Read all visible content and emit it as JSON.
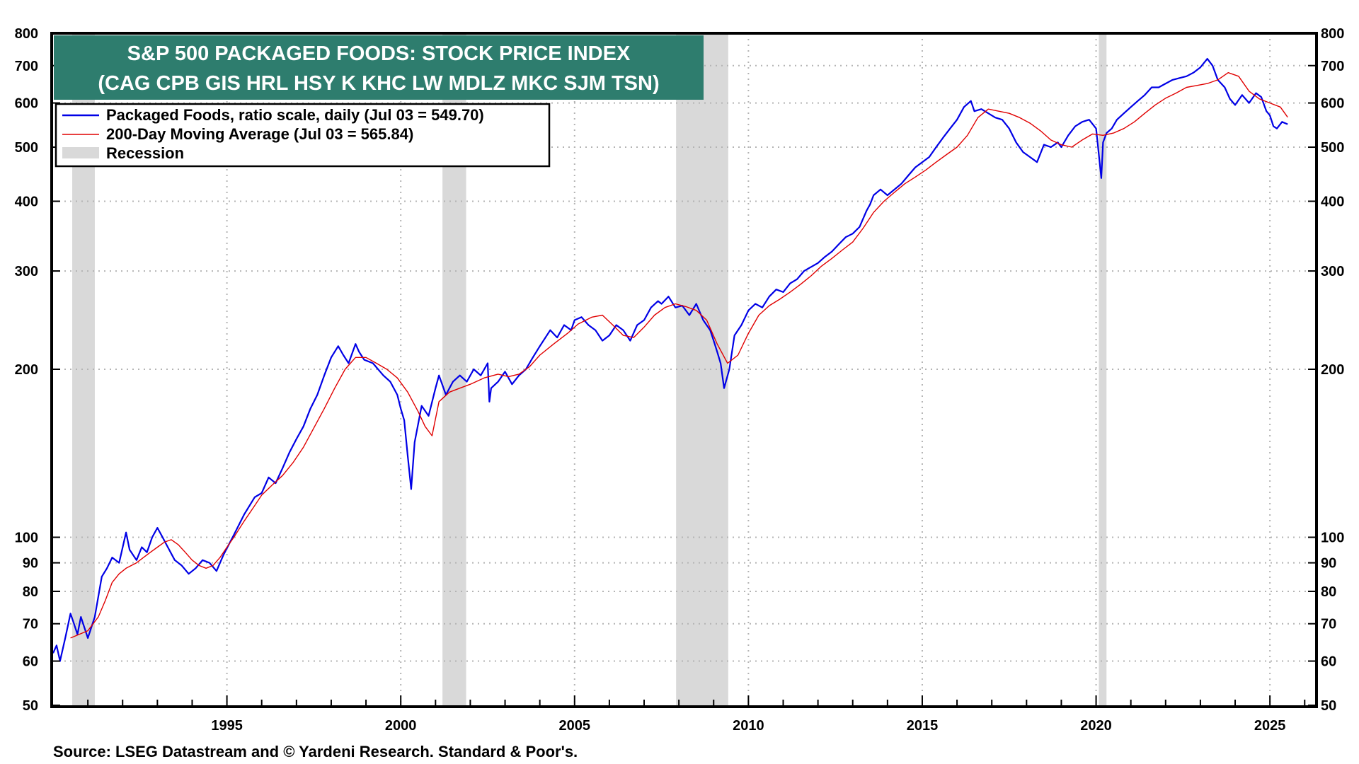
{
  "chart_data": {
    "type": "line",
    "title": "S&P 500 PACKAGED FOODS: STOCK PRICE INDEX",
    "subtitle": "(CAG CPB GIS HRL HSY K KHC LW MDLZ MKC SJM TSN)",
    "yscale": "log",
    "ylim": [
      50,
      800
    ],
    "xlim": [
      1990.0,
      2026.3
    ],
    "y_ticks": [
      50,
      60,
      70,
      80,
      90,
      100,
      200,
      300,
      400,
      500,
      600,
      700,
      800
    ],
    "x_ticks": [
      1995,
      2000,
      2005,
      2010,
      2015,
      2020,
      2025
    ],
    "grid": true,
    "legend_position": "top-left",
    "legend": {
      "series_label": "Packaged Foods, ratio scale, daily (Jul 03 = 549.70)",
      "ma_label": "200-Day Moving Average (Jul 03 = 565.84)",
      "recession_label": "Recession"
    },
    "colors": {
      "series": "#0000e6",
      "ma": "#e00000",
      "recession": "#d9d9d9",
      "title_bg": "#2e7d6e"
    },
    "recessions": [
      [
        1990.55,
        1991.2
      ],
      [
        2001.2,
        2001.88
      ],
      [
        2007.92,
        2009.42
      ],
      [
        2020.08,
        2020.3
      ]
    ],
    "series": [
      {
        "name": "Packaged Foods",
        "x": [
          1990.0,
          1990.1,
          1990.2,
          1990.35,
          1990.5,
          1990.6,
          1990.7,
          1990.8,
          1991.0,
          1991.2,
          1991.4,
          1991.55,
          1991.7,
          1991.9,
          1992.1,
          1992.2,
          1992.4,
          1992.55,
          1992.7,
          1992.85,
          1993.0,
          1993.15,
          1993.3,
          1993.5,
          1993.7,
          1993.9,
          1994.1,
          1994.3,
          1994.5,
          1994.7,
          1994.9,
          1995.2,
          1995.5,
          1995.8,
          1996.0,
          1996.2,
          1996.4,
          1996.6,
          1996.8,
          1997.0,
          1997.2,
          1997.4,
          1997.6,
          1997.8,
          1998.0,
          1998.2,
          1998.35,
          1998.5,
          1998.7,
          1998.8,
          1998.95,
          1999.2,
          1999.5,
          1999.7,
          1999.9,
          2000.0,
          2000.1,
          2000.2,
          2000.3,
          2000.4,
          2000.6,
          2000.8,
          2001.0,
          2001.1,
          2001.3,
          2001.5,
          2001.7,
          2001.9,
          2002.1,
          2002.3,
          2002.5,
          2002.55,
          2002.6,
          2002.8,
          2003.0,
          2003.2,
          2003.4,
          2003.6,
          2003.8,
          2004.0,
          2004.3,
          2004.5,
          2004.7,
          2004.9,
          2005.0,
          2005.2,
          2005.4,
          2005.6,
          2005.8,
          2006.0,
          2006.2,
          2006.4,
          2006.6,
          2006.8,
          2007.0,
          2007.2,
          2007.4,
          2007.5,
          2007.7,
          2007.9,
          2008.1,
          2008.3,
          2008.5,
          2008.7,
          2008.9,
          2009.0,
          2009.1,
          2009.2,
          2009.3,
          2009.45,
          2009.6,
          2009.8,
          2010.0,
          2010.2,
          2010.4,
          2010.6,
          2010.8,
          2011.0,
          2011.2,
          2011.4,
          2011.6,
          2011.8,
          2012.0,
          2012.2,
          2012.4,
          2012.6,
          2012.8,
          2013.0,
          2013.2,
          2013.4,
          2013.5,
          2013.6,
          2013.8,
          2014.0,
          2014.2,
          2014.4,
          2014.6,
          2014.8,
          2015.0,
          2015.2,
          2015.4,
          2015.6,
          2015.8,
          2016.0,
          2016.2,
          2016.4,
          2016.5,
          2016.7,
          2016.9,
          2017.1,
          2017.3,
          2017.5,
          2017.7,
          2017.9,
          2018.1,
          2018.3,
          2018.5,
          2018.7,
          2018.9,
          2019.0,
          2019.2,
          2019.4,
          2019.6,
          2019.8,
          2020.0,
          2020.15,
          2020.2,
          2020.3,
          2020.45,
          2020.6,
          2020.8,
          2021.0,
          2021.2,
          2021.4,
          2021.6,
          2021.8,
          2022.0,
          2022.2,
          2022.4,
          2022.6,
          2022.8,
          2023.0,
          2023.2,
          2023.35,
          2023.5,
          2023.7,
          2023.85,
          2024.0,
          2024.2,
          2024.4,
          2024.6,
          2024.75,
          2024.9,
          2025.0,
          2025.1,
          2025.2,
          2025.35,
          2025.51
        ],
        "values": [
          62,
          64,
          60,
          66,
          73,
          70,
          67,
          72,
          66,
          72,
          85,
          88,
          92,
          90,
          102,
          95,
          91,
          96,
          94,
          100,
          104,
          100,
          96,
          91,
          89,
          86,
          88,
          91,
          90,
          87,
          93,
          101,
          110,
          118,
          120,
          128,
          125,
          133,
          142,
          150,
          158,
          170,
          180,
          195,
          210,
          220,
          212,
          205,
          222,
          215,
          208,
          205,
          195,
          190,
          180,
          170,
          162,
          140,
          122,
          148,
          172,
          165,
          185,
          195,
          180,
          190,
          195,
          190,
          200,
          195,
          205,
          175,
          185,
          190,
          198,
          188,
          195,
          200,
          210,
          220,
          235,
          228,
          240,
          235,
          245,
          248,
          240,
          235,
          225,
          230,
          240,
          235,
          225,
          240,
          245,
          258,
          265,
          262,
          270,
          258,
          260,
          250,
          262,
          245,
          235,
          225,
          215,
          205,
          185,
          200,
          230,
          240,
          255,
          262,
          258,
          270,
          278,
          275,
          285,
          290,
          300,
          305,
          310,
          318,
          325,
          335,
          345,
          350,
          360,
          385,
          395,
          410,
          420,
          410,
          420,
          430,
          445,
          460,
          470,
          480,
          500,
          520,
          540,
          560,
          590,
          605,
          580,
          585,
          575,
          565,
          560,
          540,
          510,
          490,
          480,
          470,
          505,
          500,
          510,
          500,
          525,
          545,
          555,
          560,
          540,
          440,
          510,
          530,
          540,
          560,
          575,
          590,
          605,
          620,
          640,
          640,
          650,
          660,
          665,
          670,
          680,
          695,
          720,
          700,
          660,
          640,
          610,
          595,
          620,
          600,
          625,
          615,
          580,
          570,
          545,
          540,
          555,
          549.7
        ]
      },
      {
        "name": "200-Day Moving Average",
        "x": [
          1990.5,
          1991.0,
          1991.3,
          1991.5,
          1991.7,
          1991.9,
          1992.1,
          1992.4,
          1992.6,
          1992.8,
          1993.0,
          1993.2,
          1993.4,
          1993.6,
          1993.8,
          1994.0,
          1994.2,
          1994.4,
          1994.6,
          1994.8,
          1995.0,
          1995.2,
          1995.5,
          1995.8,
          1996.0,
          1996.3,
          1996.6,
          1996.9,
          1997.2,
          1997.5,
          1997.8,
          1998.1,
          1998.4,
          1998.7,
          1999.0,
          1999.3,
          1999.6,
          1999.9,
          2000.2,
          2000.5,
          2000.7,
          2000.9,
          2001.1,
          2001.4,
          2001.7,
          2002.0,
          2002.4,
          2002.8,
          2003.1,
          2003.4,
          2003.7,
          2004.0,
          2004.4,
          2004.8,
          2005.1,
          2005.5,
          2005.8,
          2006.1,
          2006.4,
          2006.7,
          2007.0,
          2007.3,
          2007.6,
          2007.9,
          2008.2,
          2008.5,
          2008.8,
          2009.1,
          2009.4,
          2009.7,
          2010.0,
          2010.3,
          2010.6,
          2010.9,
          2011.2,
          2011.5,
          2011.8,
          2012.1,
          2012.4,
          2012.7,
          2013.0,
          2013.3,
          2013.6,
          2013.9,
          2014.2,
          2014.5,
          2014.8,
          2015.1,
          2015.4,
          2015.7,
          2016.0,
          2016.3,
          2016.6,
          2016.9,
          2017.2,
          2017.5,
          2017.8,
          2018.1,
          2018.4,
          2018.7,
          2019.0,
          2019.3,
          2019.6,
          2019.9,
          2020.2,
          2020.5,
          2020.8,
          2021.1,
          2021.4,
          2021.7,
          2022.0,
          2022.3,
          2022.6,
          2022.9,
          2023.2,
          2023.5,
          2023.8,
          2024.1,
          2024.4,
          2024.7,
          2025.0,
          2025.3,
          2025.51
        ],
        "values": [
          66,
          68,
          72,
          77,
          83,
          86,
          88,
          90,
          92,
          94,
          96,
          98,
          99,
          97,
          94,
          91,
          89,
          88,
          89,
          92,
          96,
          100,
          107,
          114,
          119,
          124,
          129,
          136,
          145,
          157,
          170,
          185,
          200,
          210,
          210,
          205,
          200,
          193,
          182,
          168,
          158,
          152,
          175,
          182,
          185,
          188,
          193,
          196,
          194,
          196,
          202,
          212,
          222,
          232,
          241,
          248,
          250,
          240,
          230,
          228,
          238,
          250,
          258,
          262,
          259,
          255,
          245,
          222,
          205,
          212,
          232,
          250,
          260,
          267,
          275,
          284,
          294,
          306,
          316,
          327,
          338,
          358,
          382,
          400,
          415,
          430,
          442,
          455,
          470,
          485,
          500,
          525,
          565,
          585,
          580,
          575,
          565,
          552,
          535,
          515,
          505,
          500,
          515,
          528,
          525,
          530,
          540,
          555,
          575,
          595,
          612,
          625,
          640,
          645,
          650,
          660,
          680,
          670,
          630,
          610,
          600,
          590,
          565.84
        ]
      }
    ]
  }
}
